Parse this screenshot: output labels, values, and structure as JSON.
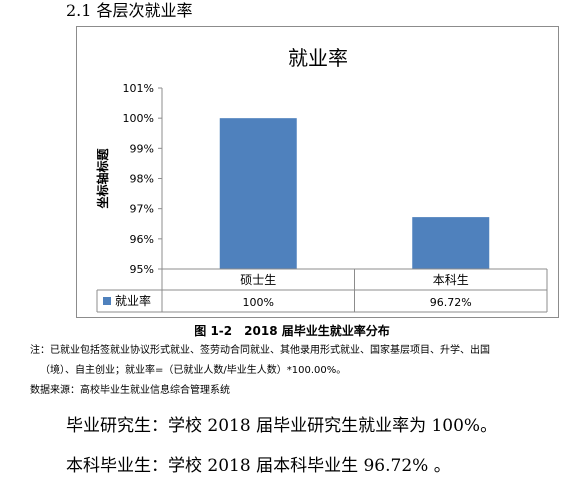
{
  "section": {
    "heading": "2.1 各层次就业率"
  },
  "chart_data": {
    "type": "bar",
    "title": "就业率",
    "ylabel": "坐标轴标题",
    "xlabel": "",
    "categories": [
      "硕士生",
      "本科生"
    ],
    "series": [
      {
        "name": "就业率",
        "values": [
          100,
          96.72
        ],
        "labels": [
          "100%",
          "96.72%"
        ]
      }
    ],
    "ylim": [
      95,
      101
    ],
    "yticks": [
      "95%",
      "96%",
      "97%",
      "98%",
      "99%",
      "100%",
      "101%"
    ],
    "grid": false,
    "legend": "data-table",
    "bar_color": "#4f81bd"
  },
  "figure": {
    "caption": "图 1-2　2018 届毕业生就业率分布"
  },
  "notes": {
    "line1": "注：已就业包括签就业协议形式就业、签劳动合同就业、其他录用形式就业、国家基层项目、升学、出国",
    "line2": "（境）、自主创业；就业率=（已就业人数/毕业生人数）*100.00%。",
    "source": "数据来源：高校毕业生就业信息综合管理系统"
  },
  "body": {
    "graduate": "毕业研究生：学校 2018 届毕业研究生就业率为 100%。",
    "undergraduate": "本科毕业生：学校 2018 届本科毕业生 96.72% 。"
  }
}
